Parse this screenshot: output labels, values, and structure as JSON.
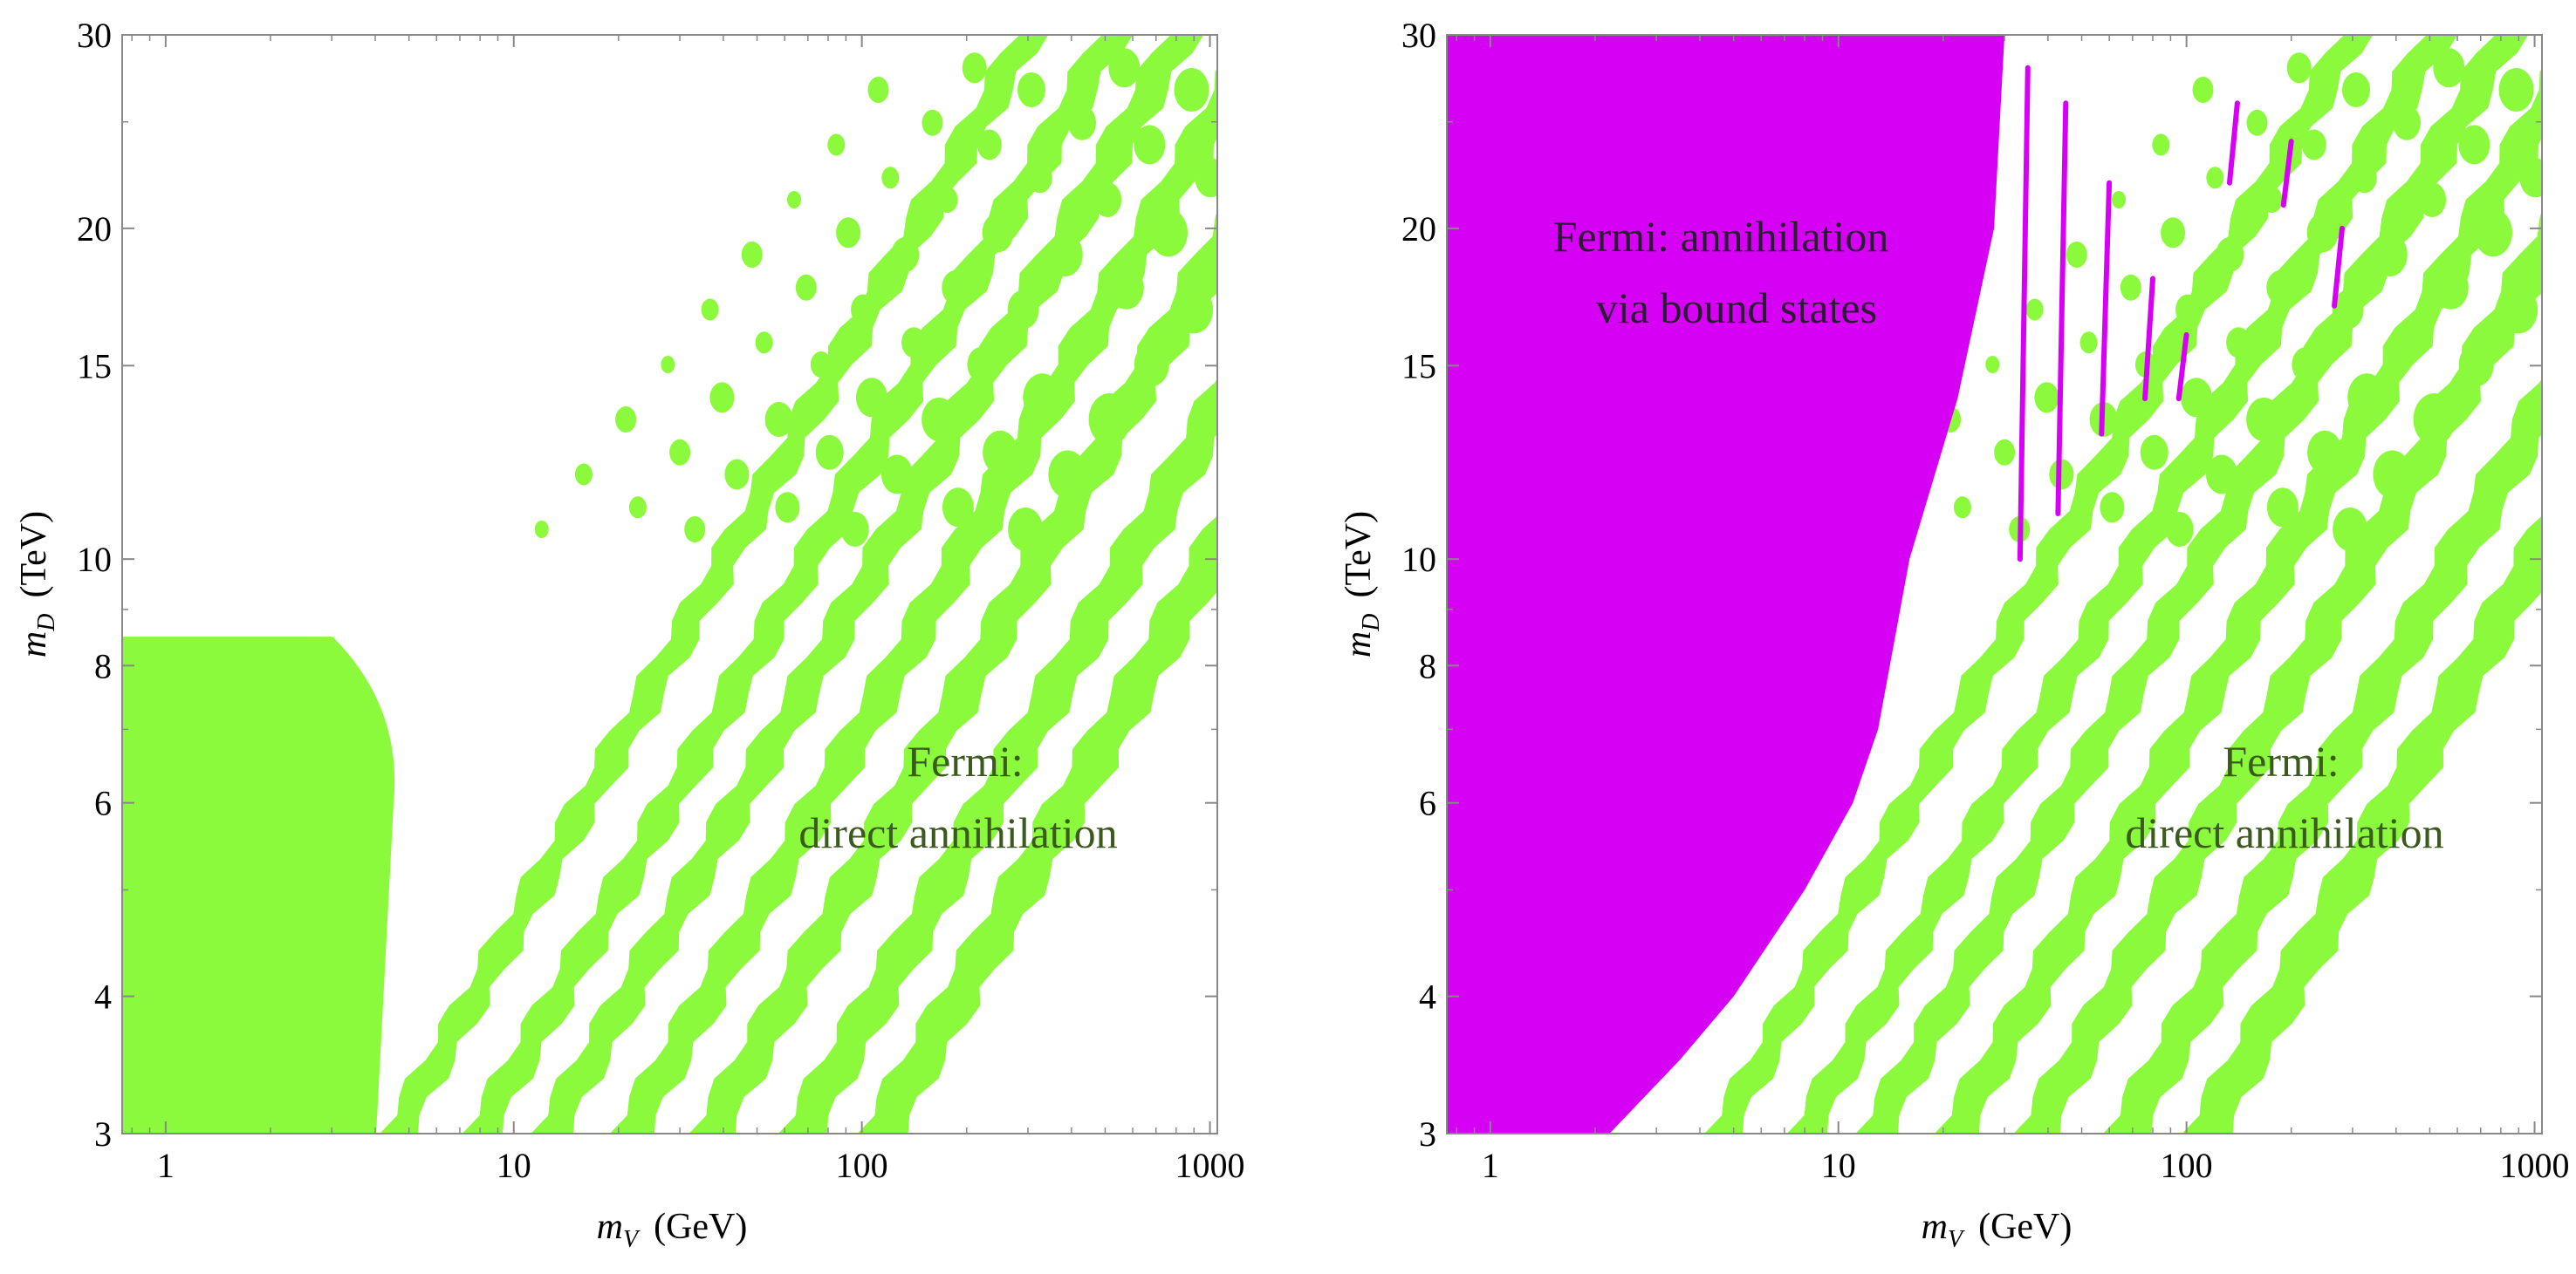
{
  "colors": {
    "green": "#8cfa3c",
    "magenta": "#d600f4",
    "frame": "#888888"
  },
  "chart_data": [
    {
      "type": "contour",
      "panel": "left",
      "xscale": "log",
      "yscale": "log",
      "xlim": [
        0.75,
        1050
      ],
      "ylim": [
        3,
        30
      ],
      "xticks": [
        1,
        10,
        100,
        1000
      ],
      "xtick_labels": [
        "1",
        "10",
        "100",
        "1000"
      ],
      "yticks": [
        3,
        4,
        6,
        8,
        10,
        15,
        20,
        30
      ],
      "ytick_labels": [
        "3",
        "4",
        "6",
        "8",
        "10",
        "15",
        "20",
        "30"
      ],
      "xlabel_var": "m",
      "xlabel_sub": "V",
      "xlabel_unit": "(GeV)",
      "ylabel_var": "m",
      "ylabel_sub": "D",
      "ylabel_unit": "(TeV)",
      "annotation_line1": "Fermi:",
      "annotation_line2": "direct annihilation",
      "regions": [
        {
          "name": "Fermi: direct annihilation",
          "color": "green"
        }
      ]
    },
    {
      "type": "contour",
      "panel": "right",
      "xscale": "log",
      "yscale": "log",
      "xlim": [
        0.75,
        1050
      ],
      "ylim": [
        3,
        30
      ],
      "xticks": [
        1,
        10,
        100,
        1000
      ],
      "xtick_labels": [
        "1",
        "10",
        "100",
        "1000"
      ],
      "yticks": [
        3,
        4,
        6,
        8,
        10,
        15,
        20,
        30
      ],
      "ytick_labels": [
        "3",
        "4",
        "6",
        "8",
        "10",
        "15",
        "20",
        "30"
      ],
      "xlabel_var": "m",
      "xlabel_sub": "V",
      "xlabel_unit": "(GeV)",
      "ylabel_var": "m",
      "ylabel_sub": "D",
      "ylabel_unit": "(TeV)",
      "annotation_line1": "Fermi:",
      "annotation_line2": "direct annihilation",
      "bs_annotation_line1": "Fermi: annihilation",
      "bs_annotation_line2": "via bound states",
      "regions": [
        {
          "name": "Fermi: direct annihilation",
          "color": "green"
        },
        {
          "name": "Fermi: annihilation via bound states",
          "color": "magenta"
        }
      ]
    }
  ]
}
